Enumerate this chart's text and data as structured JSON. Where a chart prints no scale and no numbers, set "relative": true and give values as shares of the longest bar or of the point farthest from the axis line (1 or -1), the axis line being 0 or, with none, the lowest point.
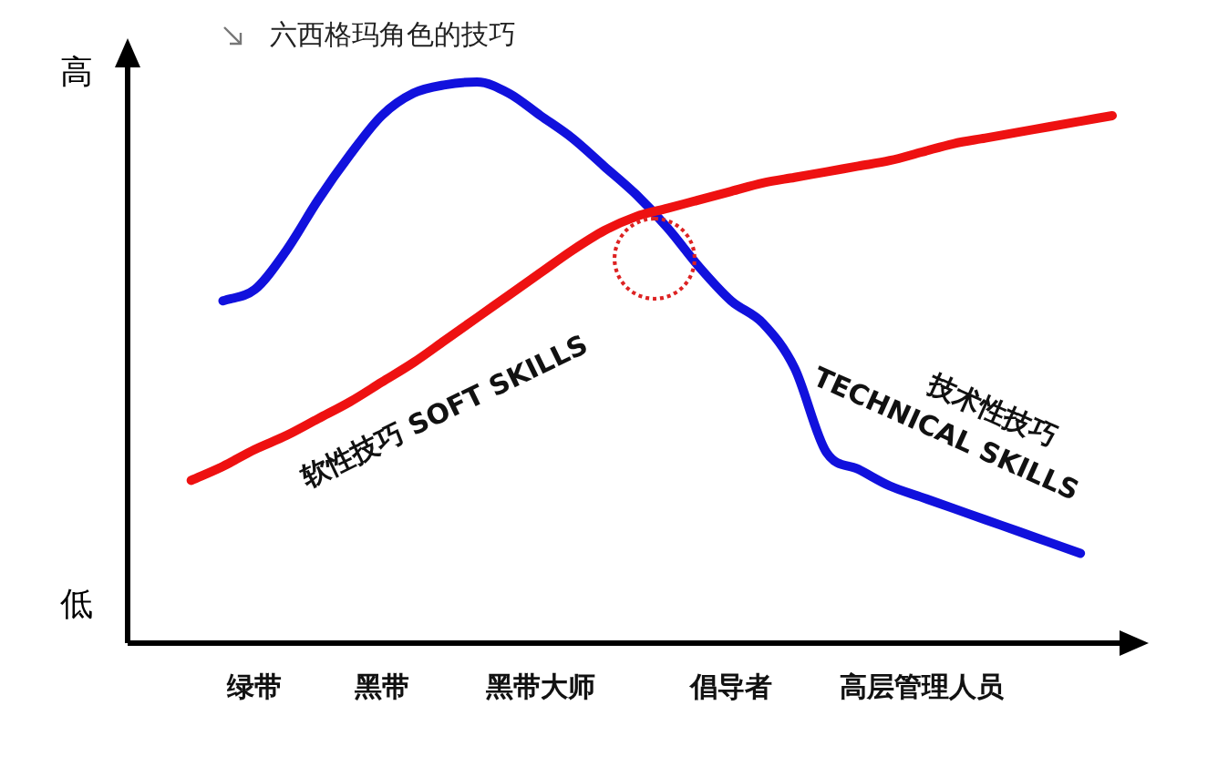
{
  "chart_data": {
    "type": "line",
    "title": "六西格玛角色的技巧",
    "relative": true,
    "categories": [
      null,
      null,
      null,
      null,
      "绿带",
      null,
      null,
      null,
      "黑带",
      null,
      null,
      null,
      null,
      "黑带大师",
      null,
      null,
      null,
      null,
      null,
      "倡导者",
      null,
      null,
      null,
      null,
      null,
      "高层管理人员",
      null,
      null,
      null,
      null,
      null,
      null
    ],
    "series": [
      {
        "name": "软性技巧 SOFT SKILLS",
        "color": "#ee1111",
        "values": [
          null,
          null,
          0.29,
          0.315,
          0.345,
          0.37,
          0.4,
          0.43,
          0.465,
          0.5,
          0.54,
          0.58,
          0.62,
          0.66,
          0.7,
          0.735,
          0.76,
          0.775,
          0.79,
          0.805,
          0.82,
          0.83,
          0.84,
          0.85,
          0.86,
          0.875,
          0.89,
          0.9,
          0.91,
          0.92,
          0.93,
          0.94
        ]
      },
      {
        "name": "技术性技巧\nTECHNICAL SKILLS",
        "color": "#1111dd",
        "values": [
          null,
          null,
          null,
          0.61,
          0.63,
          0.7,
          0.79,
          0.87,
          0.94,
          0.98,
          0.995,
          1,
          0.98,
          0.94,
          0.9,
          0.85,
          0.8,
          0.74,
          0.67,
          0.61,
          0.57,
          0.49,
          0.34,
          0.31,
          0.28,
          0.26,
          0.24,
          0.22,
          0.2,
          0.18,
          0.16,
          null
        ]
      }
    ],
    "annotations": [
      "高",
      "低"
    ],
    "legend": false,
    "grid": false,
    "marker": "none",
    "line_style": "solid"
  }
}
